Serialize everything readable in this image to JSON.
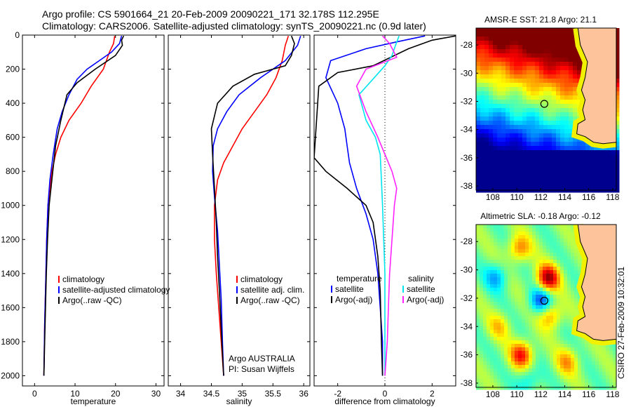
{
  "header": {
    "line1": "Argo profile: CS 5901664_21 20-Feb-2009 20090221_171 32.178S 112.295E",
    "line2": "Climatology: CARS2006. Satellite-adjusted climatology: synTS_20090221.nc (0.9d later)"
  },
  "side_note": "CSIRO 27-Feb-2009 10:32:01",
  "chart_data": [
    {
      "type": "line",
      "id": "temperature",
      "xlabel": "temperature",
      "ylabel": "",
      "xlim": [
        -3,
        32
      ],
      "ylim": [
        2060,
        0
      ],
      "xticks": [
        0,
        10,
        20,
        30
      ],
      "yticks": [
        0,
        200,
        400,
        600,
        800,
        1000,
        1200,
        1400,
        1600,
        1800,
        2000
      ],
      "legend": [
        "climatology",
        "satellite-adjusted climatology",
        "Argo(..raw -QC)"
      ],
      "series": [
        {
          "name": "climatology",
          "color": "#ff0000",
          "x": [
            19.8,
            19.5,
            18.5,
            17,
            14,
            11.5,
            8.5,
            6.5,
            5.2,
            4.3,
            3.8,
            3.3,
            3.0,
            2.8,
            2.5,
            2.3
          ],
          "y": [
            5,
            50,
            100,
            200,
            300,
            400,
            500,
            600,
            700,
            800,
            900,
            1000,
            1200,
            1400,
            1700,
            2000
          ]
        },
        {
          "name": "satellite-adjusted climatology",
          "color": "#0000ff",
          "x": [
            21.5,
            21,
            19,
            16,
            13,
            10.5,
            8.5,
            6.8,
            5.6,
            4.6,
            3.8,
            3.3,
            3.0,
            2.8,
            2.5,
            2.3
          ],
          "y": [
            5,
            50,
            100,
            150,
            200,
            260,
            350,
            450,
            550,
            700,
            850,
            1000,
            1200,
            1400,
            1700,
            2000
          ]
        },
        {
          "name": "Argo(..raw -QC)",
          "color": "#000000",
          "x": [
            22,
            21.5,
            21.7,
            20,
            15,
            10.5,
            8,
            6.5,
            5.2,
            4.5,
            3.6,
            3.2,
            2.9,
            2.7,
            2.5,
            2.3
          ],
          "y": [
            5,
            30,
            60,
            120,
            200,
            280,
            350,
            500,
            650,
            800,
            1000,
            1200,
            1400,
            1600,
            1800,
            2000
          ]
        }
      ]
    },
    {
      "type": "line",
      "id": "salinity",
      "xlabel": "salinity",
      "xlim": [
        33.8,
        36.1
      ],
      "ylim": [
        2060,
        0
      ],
      "xticks": [
        34,
        34.5,
        35,
        35.5,
        36
      ],
      "legend": [
        "climatology",
        "satellite adj. clim.",
        "Argo(..raw -QC)"
      ],
      "annotations": [
        "Argo AUSTRALIA",
        "PI: Susan Wijffels"
      ],
      "series": [
        {
          "name": "climatology",
          "color": "#ff0000",
          "x": [
            35.75,
            35.7,
            35.65,
            35.55,
            35.4,
            35.2,
            35.0,
            34.85,
            34.7,
            34.6,
            34.55,
            34.55,
            34.58,
            34.62,
            34.66,
            34.7
          ],
          "y": [
            5,
            60,
            150,
            250,
            350,
            450,
            550,
            650,
            750,
            850,
            1000,
            1200,
            1400,
            1600,
            1800,
            2000
          ]
        },
        {
          "name": "satellite adj. clim.",
          "color": "#0000ff",
          "x": [
            35.95,
            35.9,
            35.7,
            35.3,
            34.95,
            34.75,
            34.6,
            34.53,
            34.52,
            34.55,
            34.6,
            34.63,
            34.66,
            34.68,
            34.7
          ],
          "y": [
            5,
            60,
            150,
            250,
            350,
            450,
            550,
            650,
            800,
            950,
            1150,
            1350,
            1550,
            1800,
            2000
          ]
        },
        {
          "name": "Argo(..raw -QC)",
          "color": "#000000",
          "x": [
            35.8,
            35.85,
            35.8,
            35.7,
            35.2,
            34.85,
            34.6,
            34.5,
            34.52,
            34.55,
            34.58,
            34.6,
            34.63,
            34.67,
            34.7
          ],
          "y": [
            5,
            50,
            120,
            180,
            230,
            300,
            400,
            550,
            700,
            900,
            1100,
            1300,
            1500,
            1800,
            2000
          ]
        }
      ]
    },
    {
      "type": "line",
      "id": "difference",
      "xlabel": "difference from climatology",
      "xlim": [
        -3,
        3
      ],
      "ylim": [
        2060,
        0
      ],
      "xticks": [
        -2,
        0,
        2
      ],
      "legend_left_title": "temperature",
      "legend_right_title": "salinity",
      "legend": [
        "satellite",
        "Argo(-adj)",
        "satellite",
        "Argo(-adj)"
      ],
      "series": [
        {
          "name": "satellite",
          "group": "temperature",
          "color": "#0000ff",
          "x": [
            1.7,
            0.5,
            -0.8,
            -2.3,
            -2.5,
            -2.0,
            -1.7,
            -1.6,
            -1.5,
            -1.2,
            -0.8,
            -0.5,
            -0.3,
            -0.2,
            -0.1,
            -0.1
          ],
          "y": [
            5,
            40,
            80,
            150,
            250,
            400,
            550,
            650,
            750,
            900,
            1050,
            1200,
            1400,
            1600,
            1800,
            2000
          ]
        },
        {
          "name": "Argo(-adj)",
          "group": "temperature",
          "color": "#000000",
          "x": [
            3.0,
            2.0,
            1.0,
            -0.5,
            -2.0,
            -2.8,
            -3.0,
            -2.5,
            -1.6,
            -0.8,
            -0.5,
            -0.3,
            -0.2,
            -0.15,
            -0.1
          ],
          "y": [
            5,
            30,
            80,
            180,
            220,
            300,
            720,
            800,
            900,
            1000,
            1100,
            1300,
            1500,
            1800,
            2000
          ]
        },
        {
          "name": "satellite",
          "group": "salinity",
          "color": "#00e5ee",
          "x": [
            0.6,
            0.45,
            0.3,
            0.0,
            -1.1,
            -0.8,
            -0.4,
            -0.2,
            -0.15,
            -0.1,
            -0.05,
            0.0,
            0.0,
            0.0,
            0.0
          ],
          "y": [
            5,
            60,
            120,
            180,
            350,
            500,
            600,
            700,
            850,
            1000,
            1200,
            1400,
            1600,
            1800,
            2000
          ]
        },
        {
          "name": "Argo(-adj)",
          "group": "salinity",
          "color": "#ff22ff",
          "x": [
            -0.1,
            0.2,
            0.5,
            -0.8,
            -1.2,
            -0.8,
            -0.3,
            0.0,
            0.3,
            0.5,
            0.4,
            0.3,
            0.2,
            0.15,
            0.1,
            0.0
          ],
          "y": [
            5,
            50,
            130,
            200,
            300,
            450,
            600,
            700,
            800,
            900,
            1000,
            1200,
            1400,
            1600,
            1800,
            2000
          ]
        }
      ]
    },
    {
      "type": "heatmap",
      "id": "sst-map",
      "title": "AMSR-E SST: 21.8 Argo: 21.1",
      "xlim": [
        106.6,
        118.3
      ],
      "ylim": [
        -38.3,
        -26.8
      ],
      "xticks": [
        108,
        110,
        112,
        114,
        116,
        118
      ],
      "yticks": [
        -28,
        -30,
        -32,
        -34,
        -36,
        -38
      ],
      "argo_position": [
        112.295,
        -32.178
      ]
    },
    {
      "type": "heatmap",
      "id": "sla-map",
      "title": "Altimetric SLA: -0.18 Argo: -0.12",
      "xlim": [
        106.6,
        118.3
      ],
      "ylim": [
        -38.3,
        -26.8
      ],
      "xticks": [
        108,
        110,
        112,
        114,
        116,
        118
      ],
      "yticks": [
        -28,
        -30,
        -32,
        -34,
        -36,
        -38
      ],
      "argo_position": [
        112.295,
        -32.178
      ]
    }
  ]
}
